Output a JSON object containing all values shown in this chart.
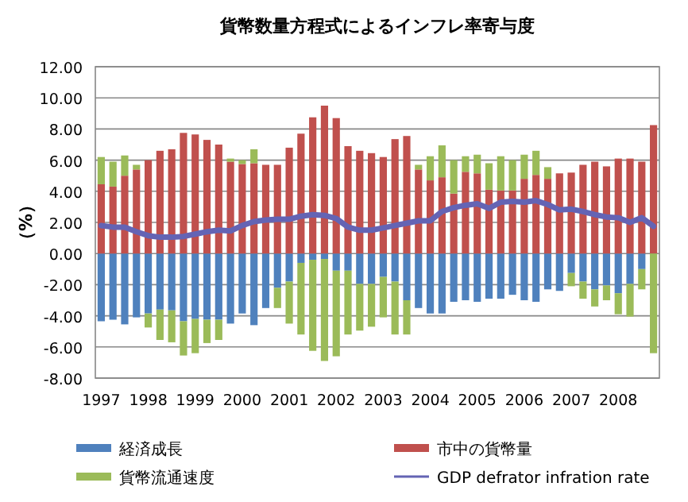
{
  "chart_data": {
    "type": "bar",
    "title": "貨幣数量方程式によるインフレ率寄与度",
    "ylabel": "（%）",
    "stacked": true,
    "grid": "y",
    "legend": "bottom",
    "categories": [
      "1997",
      null,
      null,
      null,
      "1998",
      null,
      null,
      null,
      "1999",
      null,
      null,
      null,
      "2000",
      null,
      null,
      null,
      "2001",
      null,
      null,
      null,
      "2002",
      null,
      null,
      null,
      "2003",
      null,
      null,
      null,
      "2004",
      null,
      null,
      null,
      "2005",
      null,
      null,
      null,
      "2006",
      null,
      null,
      null,
      "2007",
      null,
      null,
      null,
      "2008",
      null,
      null,
      null
    ],
    "ylim": [
      -8,
      12
    ],
    "yticks": [
      {
        "value": -8,
        "label": "-8.00"
      },
      {
        "value": -6,
        "label": "-6.00"
      },
      {
        "value": -4,
        "label": "-4.00"
      },
      {
        "value": -2,
        "label": "-2.00"
      },
      {
        "value": 0,
        "label": "0.00"
      },
      {
        "value": 2,
        "label": "2.00"
      },
      {
        "value": 4,
        "label": "4.00"
      },
      {
        "value": 6,
        "label": "6.00"
      },
      {
        "value": 8,
        "label": "8.00"
      },
      {
        "value": 10,
        "label": "10.00"
      },
      {
        "value": 12,
        "label": "12.00"
      }
    ],
    "series": [
      {
        "name": "経済成長",
        "color": "#4f81bd",
        "values": [
          -4.35,
          -4.25,
          -4.55,
          -4.1,
          -3.85,
          -3.6,
          -3.65,
          -4.35,
          -4.2,
          -4.25,
          -4.25,
          -4.5,
          -3.85,
          -4.6,
          -3.5,
          -2.2,
          -1.8,
          -0.6,
          -0.4,
          -0.35,
          -1.1,
          -1.1,
          -1.95,
          -1.95,
          -1.5,
          -1.8,
          -3.0,
          -3.5,
          -3.85,
          -3.85,
          -3.1,
          -3.0,
          -3.1,
          -2.9,
          -2.9,
          -2.65,
          -3.0,
          -3.1,
          -2.3,
          -2.4,
          -1.25,
          -1.8,
          -2.3,
          -2.05,
          -2.55,
          -1.95,
          -1.0,
          null
        ]
      },
      {
        "name": "市中の貨幣量",
        "color": "#c0504d",
        "values": [
          4.45,
          4.3,
          5.0,
          5.4,
          6.0,
          6.6,
          6.7,
          7.75,
          7.65,
          7.3,
          7.0,
          5.9,
          5.75,
          5.8,
          5.7,
          5.7,
          6.8,
          7.7,
          8.75,
          9.5,
          8.7,
          6.9,
          6.6,
          6.45,
          6.2,
          7.35,
          7.55,
          5.4,
          4.7,
          4.9,
          3.85,
          5.25,
          5.15,
          4.1,
          4.05,
          4.05,
          4.8,
          5.05,
          4.8,
          5.15,
          5.2,
          5.7,
          5.9,
          5.6,
          6.1,
          6.1,
          5.9,
          8.25
        ]
      },
      {
        "name": "貨幣流通速度",
        "color": "#9bbb59",
        "values": [
          1.75,
          1.6,
          1.3,
          0.3,
          -0.9,
          -1.95,
          -2.05,
          -2.2,
          -2.2,
          -1.5,
          -1.3,
          0.2,
          0.25,
          0.9,
          null,
          -1.3,
          -2.7,
          -4.6,
          -5.85,
          -6.55,
          -5.5,
          -4.1,
          -3.0,
          -2.75,
          -2.6,
          -3.4,
          -2.2,
          0.3,
          1.55,
          2.05,
          2.15,
          1.0,
          1.2,
          1.7,
          2.2,
          1.95,
          1.55,
          1.55,
          0.75,
          null,
          -0.85,
          -1.1,
          -1.1,
          -0.95,
          -1.35,
          -2.1,
          -1.3,
          -6.4
        ]
      },
      {
        "name": "GDP defrator infration rate",
        "type": "line",
        "color": "#6464b4",
        "values": [
          1.8,
          1.7,
          1.7,
          1.4,
          1.15,
          1.05,
          1.05,
          1.1,
          1.25,
          1.4,
          1.5,
          1.45,
          1.8,
          2.05,
          2.15,
          2.2,
          2.2,
          2.4,
          2.5,
          2.45,
          2.25,
          1.7,
          1.5,
          1.5,
          1.65,
          1.8,
          1.95,
          2.1,
          2.1,
          2.7,
          2.95,
          3.1,
          3.2,
          2.9,
          3.3,
          3.35,
          3.3,
          3.4,
          3.15,
          2.8,
          2.85,
          2.7,
          2.5,
          2.35,
          2.3,
          2.0,
          2.3,
          1.75
        ]
      }
    ]
  }
}
